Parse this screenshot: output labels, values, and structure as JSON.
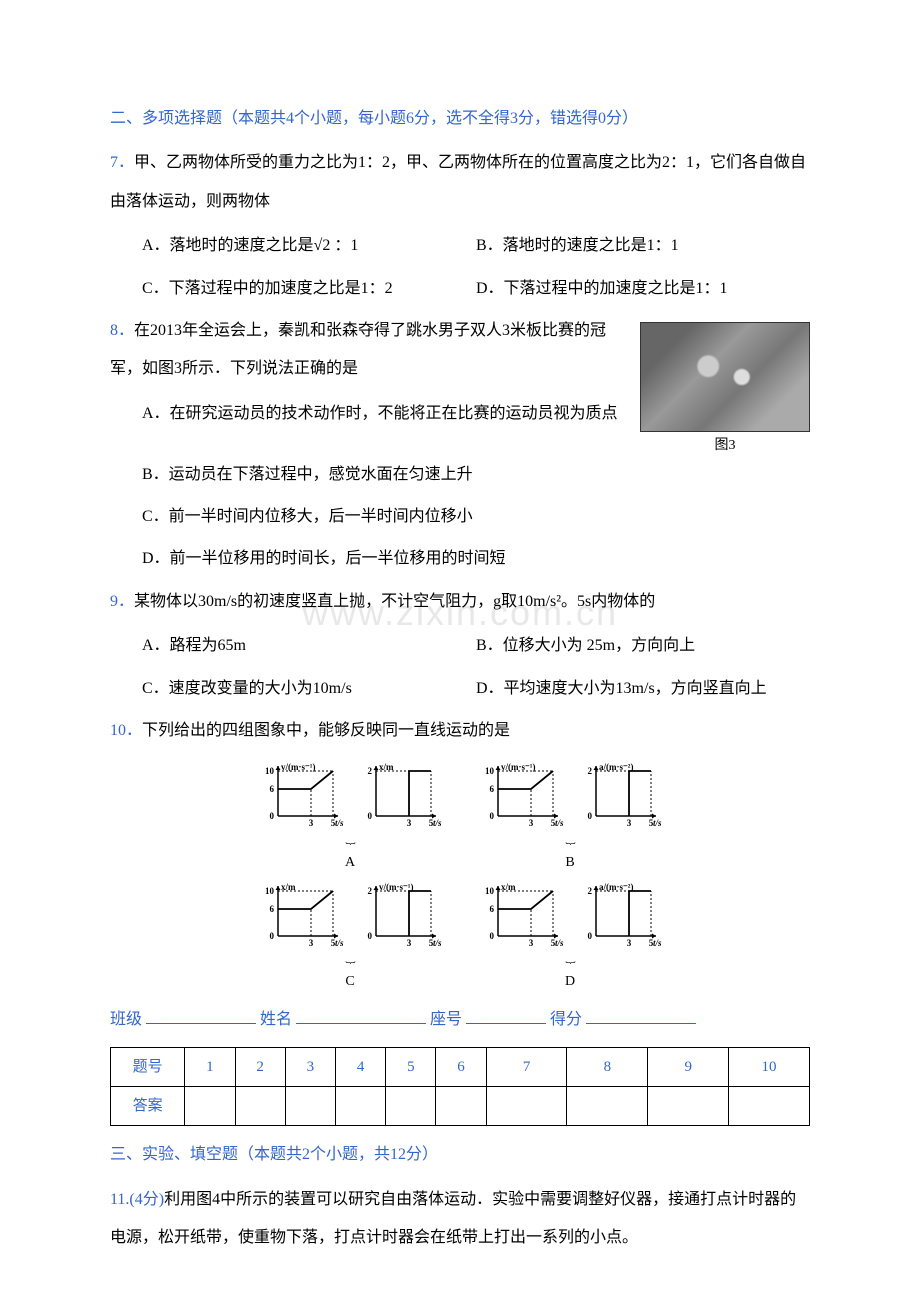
{
  "section2": {
    "title": "二、多项选择题（本题共4个小题，每小题6分，选不全得3分，错选得0分）",
    "title_color": "#3366cc"
  },
  "q7": {
    "num": "7．",
    "text": "甲、乙两物体所受的重力之比为1：2，甲、乙两物体所在的位置高度之比为2：1，它们各自做自由落体运动，则两物体",
    "optA": "A．落地时的速度之比是√2 ：1",
    "optB": "B．落地时的速度之比是1：1",
    "optC": "C．下落过程中的加速度之比是1：2",
    "optD": "D．下落过程中的加速度之比是1：1"
  },
  "q8": {
    "num": "8．",
    "text": "在2013年全运会上，秦凯和张森夺得了跳水男子双人3米板比赛的冠军，如图3所示．下列说法正确的是",
    "optA": "A．在研究运动员的技术动作时，不能将正在比赛的运动员视为质点",
    "optB": "B．运动员在下落过程中，感觉水面在匀速上升",
    "optC": "C．前一半时间内位移大，后一半时间内位移小",
    "optD": "D．前一半位移用的时间长，后一半位移用的时间短",
    "fig_caption": "图3"
  },
  "q9": {
    "num": "9．",
    "text": "某物体以30m/s的初速度竖直上抛，不计空气阻力，g取10m/s²。5s内物体的",
    "optA": "A．路程为65m",
    "optB": "B．位移大小为 25m，方向向上",
    "optC": "C．速度改变量的大小为10m/s",
    "optD": "D．平均速度大小为13m/s，方向竖直向上"
  },
  "q10": {
    "num": "10．",
    "text": "下列给出的四组图象中，能够反映同一直线运动的是",
    "graphs": {
      "ylabels": [
        "v/(m·s⁻¹)",
        "x/m",
        "v/(m·s⁻¹)",
        "a/(m·s⁻²)",
        "x/m",
        "v/(m·s⁻¹)",
        "x/m",
        "a/(m·s⁻²)"
      ],
      "xlabel": "t/s",
      "yticks_tall": [
        0,
        6,
        10
      ],
      "yticks_short": [
        0,
        2
      ],
      "xticks": [
        3,
        5
      ],
      "group_labels": [
        "A",
        "B",
        "C",
        "D"
      ],
      "axis_color": "#000000",
      "line_width": 1.5,
      "font_size": 10
    }
  },
  "form": {
    "class_label": "班级",
    "name_label": "姓名",
    "seat_label": "座号",
    "score_label": "得分",
    "color": "#3366cc"
  },
  "table": {
    "row1_label": "题号",
    "row2_label": "答案",
    "columns": [
      "1",
      "2",
      "3",
      "4",
      "5",
      "6",
      "7",
      "8",
      "9",
      "10"
    ],
    "border_color": "#000000",
    "text_color": "#3366cc"
  },
  "section3": {
    "title": "三、实验、填空题（本题共2个小题，共12分）"
  },
  "q11": {
    "num": "11.",
    "points": "(4分)",
    "text": "利用图4中所示的装置可以研究自由落体运动．实验中需要调整好仪器，接通打点计时器的电源，松开纸带，使重物下落，打点计时器会在纸带上打出一系列的小点。"
  },
  "colors": {
    "blue": "#3366cc",
    "black": "#000000",
    "background": "#ffffff",
    "watermark": "#e8e8e8"
  },
  "watermark_text": "www.zixin.com.cn"
}
